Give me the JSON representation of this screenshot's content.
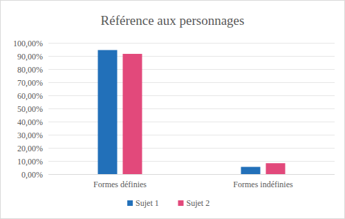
{
  "chart_data": {
    "type": "bar",
    "title": "Référence aux personnages",
    "categories": [
      "Formes définies",
      "Formes indéfinies"
    ],
    "series": [
      {
        "name": "Sujet 1",
        "color": "#2270b9",
        "values": [
          94.5,
          5.5
        ]
      },
      {
        "name": "Sujet 2",
        "color": "#e2497b",
        "values": [
          91.6,
          8.3
        ]
      }
    ],
    "ylim": [
      0,
      100
    ],
    "yticks": [
      {
        "value": 0,
        "label": "0,00%"
      },
      {
        "value": 10,
        "label": "10,00%"
      },
      {
        "value": 20,
        "label": "20,00%"
      },
      {
        "value": 30,
        "label": "30,00%"
      },
      {
        "value": 40,
        "label": "40,00%"
      },
      {
        "value": 50,
        "label": "50,00%"
      },
      {
        "value": 60,
        "label": "60,00%"
      },
      {
        "value": 70,
        "label": "70,00%"
      },
      {
        "value": 80,
        "label": "80,00%"
      },
      {
        "value": 90,
        "label": "90,00%"
      },
      {
        "value": 100,
        "label": "100,00%"
      }
    ],
    "grid": true,
    "legend": "bottom"
  }
}
